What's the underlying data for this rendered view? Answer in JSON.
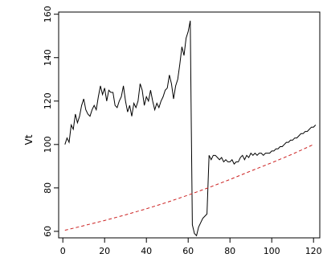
{
  "chart_data": {
    "type": "line",
    "title": "",
    "xlabel": "",
    "ylabel": "Vt",
    "xlim": [
      -2,
      123
    ],
    "ylim": [
      57,
      161
    ],
    "x_ticks": [
      0,
      20,
      40,
      60,
      80,
      100,
      120
    ],
    "y_ticks": [
      60,
      80,
      100,
      120,
      140,
      160
    ],
    "grid": false,
    "legend": "none",
    "series": [
      {
        "style": "solid",
        "color": "#000000",
        "x": [
          1,
          2,
          3,
          4,
          5,
          6,
          7,
          8,
          9,
          10,
          11,
          12,
          13,
          14,
          15,
          16,
          17,
          18,
          19,
          20,
          21,
          22,
          23,
          24,
          25,
          26,
          27,
          28,
          29,
          30,
          31,
          32,
          33,
          34,
          35,
          36,
          37,
          38,
          39,
          40,
          41,
          42,
          43,
          44,
          45,
          46,
          47,
          48,
          49,
          50,
          51,
          52,
          53,
          54,
          55,
          56,
          57,
          58,
          59,
          60,
          61,
          61.5,
          62,
          63,
          64,
          65,
          66,
          67,
          68,
          69,
          70,
          71,
          72,
          73,
          74,
          75,
          76,
          77,
          78,
          79,
          80,
          81,
          82,
          83,
          84,
          85,
          86,
          87,
          88,
          89,
          90,
          91,
          92,
          93,
          94,
          95,
          96,
          97,
          98,
          99,
          100,
          101,
          102,
          103,
          104,
          105,
          106,
          107,
          108,
          109,
          110,
          111,
          112,
          113,
          114,
          115,
          116,
          117,
          118,
          119,
          120,
          121
        ],
        "y": [
          100,
          103,
          101,
          109,
          107,
          114,
          110,
          113,
          118,
          121,
          116,
          114,
          113,
          116,
          118,
          116,
          122,
          127,
          123,
          126,
          120,
          125,
          124,
          124,
          118,
          117,
          120,
          122,
          127,
          120,
          115,
          118,
          113,
          119,
          117,
          120,
          128,
          125,
          118,
          122,
          120,
          125,
          120,
          116,
          119,
          117,
          120,
          122,
          125,
          126,
          132,
          128,
          121,
          127,
          130,
          137,
          145,
          141,
          149,
          152,
          157,
          108,
          63,
          59,
          58,
          62,
          64,
          66,
          67,
          68,
          95,
          93,
          95,
          95,
          94,
          93,
          94,
          92,
          93,
          92,
          92,
          93,
          91,
          92,
          92,
          94,
          95,
          93,
          95,
          94,
          96,
          95,
          96,
          95,
          96,
          96,
          95,
          96,
          96,
          96,
          97,
          97,
          98,
          98,
          99,
          99,
          100,
          101,
          101,
          102,
          102,
          103,
          103,
          104,
          105,
          105,
          106,
          106,
          107,
          108,
          108,
          109
        ]
      },
      {
        "style": "dashed",
        "color": "#cc2222",
        "x": [
          1,
          10,
          20,
          30,
          40,
          50,
          60,
          70,
          80,
          90,
          100,
          110,
          120
        ],
        "y": [
          60.5,
          62.6,
          65.0,
          67.6,
          70.4,
          73.4,
          76.7,
          80.2,
          83.9,
          87.8,
          91.6,
          95.6,
          100.0
        ]
      }
    ]
  }
}
